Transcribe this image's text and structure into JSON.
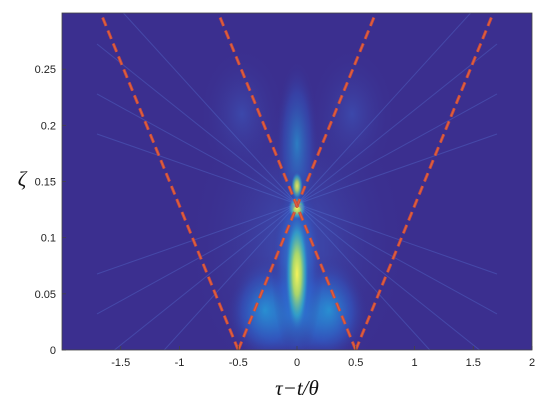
{
  "chart_data": {
    "type": "heatmap",
    "title": "",
    "xlabel": "τ−t/θ",
    "ylabel": "ζ",
    "xlim": [
      -2,
      2
    ],
    "ylim": [
      0,
      0.3
    ],
    "x_ticks": [
      "-1.5",
      "-1",
      "-0.5",
      "0",
      "0.5",
      "1",
      "1.5",
      "2"
    ],
    "x_tick_values": [
      -1.5,
      -1,
      -0.5,
      0,
      0.5,
      1,
      1.5,
      2
    ],
    "y_ticks": [
      "0",
      "0.05",
      "0.1",
      "0.15",
      "0.2",
      "0.25"
    ],
    "y_tick_values": [
      0,
      0.05,
      0.1,
      0.15,
      0.2,
      0.25
    ],
    "grid": false,
    "colormap": [
      "#3a2c8c",
      "#2f55c8",
      "#1e8ae0",
      "#21b7c9",
      "#6fcf84",
      "#d7e35a",
      "#f7f35a"
    ],
    "background_color": "#3b2f8f",
    "focus": {
      "x": 0,
      "y": 0.13
    },
    "overlay_lines": [
      {
        "x": [
          -0.5,
          -1.67
        ],
        "y": [
          0,
          0.3
        ]
      },
      {
        "x": [
          0.5,
          1.67
        ],
        "y": [
          0,
          0.3
        ]
      },
      {
        "x": [
          -0.5,
          0.67
        ],
        "y": [
          0,
          0.3
        ]
      },
      {
        "x": [
          0.5,
          -0.67
        ],
        "y": [
          0,
          0.3
        ]
      }
    ],
    "overlay_color": "#c8483e",
    "overlay_dash_color": "#e46a3c"
  }
}
